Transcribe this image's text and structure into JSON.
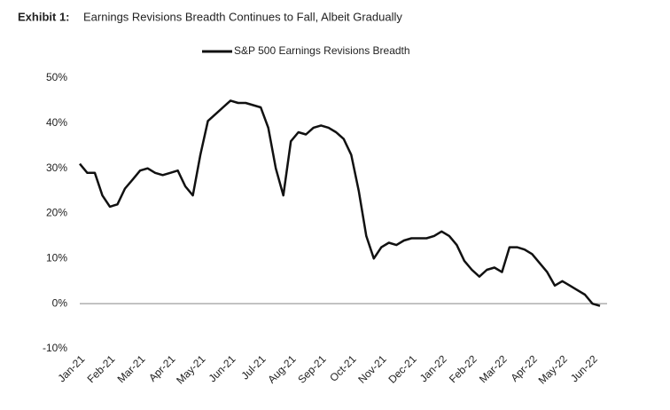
{
  "chart_data": {
    "type": "line",
    "title_label": "Exhibit 1:",
    "title": "Earnings Revisions Breadth Continues to Fall, Albeit Gradually",
    "categories": [
      "Jan-21",
      null,
      null,
      null,
      "Feb-21",
      null,
      null,
      null,
      "Mar-21",
      null,
      null,
      null,
      "Apr-21",
      null,
      null,
      null,
      "May-21",
      null,
      null,
      null,
      "Jun-21",
      null,
      null,
      null,
      "Jul-21",
      null,
      null,
      null,
      "Aug-21",
      null,
      null,
      null,
      "Sep-21",
      null,
      null,
      null,
      "Oct-21",
      null,
      null,
      null,
      "Nov-21",
      null,
      null,
      null,
      "Dec-21",
      null,
      null,
      null,
      "Jan-22",
      null,
      null,
      null,
      "Feb-22",
      null,
      null,
      null,
      "Mar-22",
      null,
      null,
      null,
      "Apr-22",
      null,
      null,
      null,
      "May-22",
      null,
      null,
      null,
      "Jun-22",
      null
    ],
    "series": [
      {
        "name": "S&P 500 Earnings Revisions Breadth",
        "color": "#111111",
        "values": [
          31,
          29,
          29,
          24,
          21.5,
          22,
          25.5,
          27.5,
          29.5,
          30,
          29,
          28.5,
          29,
          29.5,
          26,
          24,
          33,
          40.5,
          42,
          43.5,
          45,
          44.5,
          44.5,
          44,
          43.5,
          39,
          30,
          24,
          36,
          38,
          37.5,
          39,
          39.5,
          39,
          38,
          36.5,
          33,
          25,
          15,
          10,
          12.5,
          13.5,
          13,
          14,
          14.5,
          14.5,
          14.5,
          15,
          16,
          15,
          13,
          9.5,
          7.5,
          6,
          7.5,
          8,
          7,
          12.5,
          12.5,
          12,
          11,
          9,
          7,
          4,
          5,
          4,
          3,
          2,
          0,
          -0.5
        ]
      }
    ],
    "ylim": [
      -10,
      50
    ],
    "yticks": [
      {
        "value": -10,
        "label": "-10%"
      },
      {
        "value": 0,
        "label": "0%"
      },
      {
        "value": 10,
        "label": "10%"
      },
      {
        "value": 20,
        "label": "20%"
      },
      {
        "value": 30,
        "label": "30%"
      },
      {
        "value": 40,
        "label": "40%"
      },
      {
        "value": 50,
        "label": "50%"
      }
    ],
    "zero_line": true
  }
}
